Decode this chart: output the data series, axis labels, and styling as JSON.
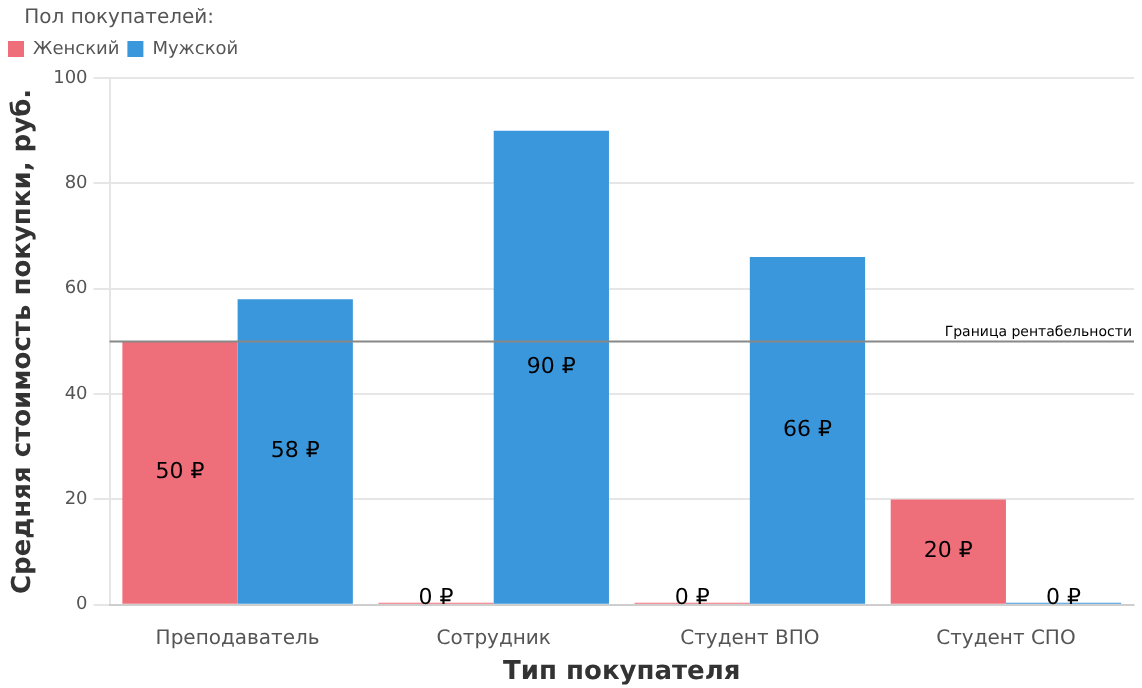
{
  "chart_data": {
    "type": "bar",
    "xlabel": "Тип покупателя",
    "ylabel": "Средняя стоимость покупки, руб.",
    "legend_title": "Пол покупателей:",
    "categories": [
      "Преподаватель",
      "Сотрудник",
      "Студент ВПО",
      "Студент СПО"
    ],
    "series": [
      {
        "name": "Женский",
        "color": "#ee6f7a",
        "values": [
          50,
          0,
          0,
          20
        ],
        "value_labels": [
          "50 ₽",
          "0 ₽",
          "0 ₽",
          "20 ₽"
        ]
      },
      {
        "name": "Мужской",
        "color": "#3a97db",
        "values": [
          58,
          90,
          66,
          0
        ],
        "value_labels": [
          "58 ₽",
          "90 ₽",
          "66 ₽",
          "0 ₽"
        ]
      }
    ],
    "ylim": [
      0,
      100
    ],
    "yticks": [
      0,
      20,
      40,
      60,
      80,
      100
    ],
    "grid": "y",
    "legend": "top left",
    "ref_lines": [
      {
        "axis": "y",
        "value": 50,
        "label": "Граница рентабельности",
        "color": "#888888"
      }
    ]
  }
}
